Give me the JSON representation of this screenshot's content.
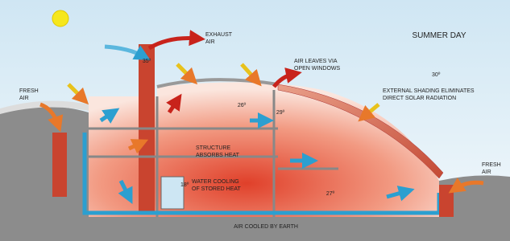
{
  "title": "SUMMER DAY",
  "labels": [
    {
      "lines": [
        "EXHAUST",
        "AIR"
      ]
    },
    {
      "lines": [
        "AIR LEAVES VIA",
        "OPEN WINDOWS"
      ]
    },
    {
      "lines": [
        "30º"
      ]
    },
    {
      "lines": [
        "EXTERNAL SHADING ELIMINATES",
        "DIRECT SOLAR RADIATION"
      ]
    },
    {
      "lines": [
        "FRESH",
        "AIR"
      ]
    },
    {
      "lines": [
        "FRESH",
        "AIR"
      ]
    },
    {
      "lines": [
        "35º"
      ]
    },
    {
      "lines": [
        "26º"
      ]
    },
    {
      "lines": [
        "29º"
      ]
    },
    {
      "lines": [
        "STRUCTURE",
        "ABSORBS HEAT"
      ]
    },
    {
      "lines": [
        "WATER COOLING",
        "OF STORED HEAT"
      ]
    },
    {
      "lines": [
        "18º"
      ]
    },
    {
      "lines": [
        "27º"
      ]
    },
    {
      "lines": [
        "AIR COOLED BY EARTH"
      ]
    }
  ]
}
